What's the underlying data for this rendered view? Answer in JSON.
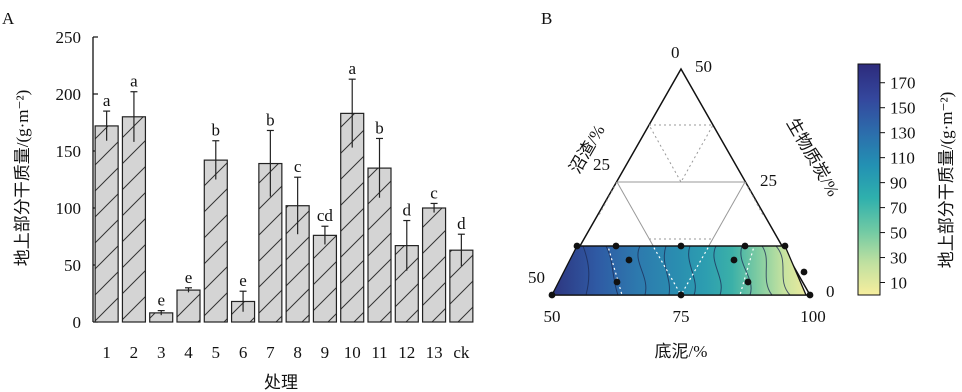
{
  "panel_a_label": "A",
  "panel_b_label": "B",
  "chart_data": [
    {
      "type": "bar",
      "ylabel": "地上部分干质量/(g·m⁻²)",
      "xlabel": "处理",
      "ylim": [
        0,
        250
      ],
      "yticks": [
        0,
        50,
        100,
        150,
        200,
        250
      ],
      "categories": [
        "1",
        "2",
        "3",
        "4",
        "5",
        "6",
        "7",
        "8",
        "9",
        "10",
        "11",
        "12",
        "13",
        "ck"
      ],
      "series": [
        {
          "values": [
            172,
            180,
            8,
            28,
            142,
            18,
            139,
            102,
            76,
            183,
            135,
            67,
            100,
            63
          ],
          "errors": [
            13,
            22,
            2,
            2,
            17,
            9,
            29,
            25,
            8,
            30,
            26,
            22,
            4,
            14
          ],
          "letters": [
            "a",
            "a",
            "e",
            "e",
            "b",
            "e",
            "b",
            "c",
            "cd",
            "a",
            "b",
            "d",
            "c",
            "d"
          ]
        }
      ],
      "bar_fill": "#d4d4d4",
      "hatch": "diagonal"
    },
    {
      "type": "heatmap",
      "subtype": "ternary",
      "axes": {
        "bottom": {
          "label": "底泥/%",
          "ticks": [
            "50",
            "75",
            "100"
          ]
        },
        "left": {
          "label": "沼渣/%",
          "ticks": [
            "0",
            "25",
            "50"
          ]
        },
        "right": {
          "label": "生物质炭/%",
          "ticks": [
            "50",
            "25",
            "0"
          ]
        }
      },
      "colorbar": {
        "label": "地上部分干质量/(g·m⁻²)",
        "ticks": [
          10,
          30,
          50,
          70,
          90,
          110,
          130,
          150,
          170
        ],
        "range": [
          0,
          185
        ],
        "colormap": [
          "#f7ee9e",
          "#bfe0a0",
          "#6fc9a4",
          "#2fb0ad",
          "#2391b3",
          "#2c6eac",
          "#34479d",
          "#2d2b7c"
        ]
      },
      "contour_values_left_to_right": [
        172,
        160,
        140,
        125,
        110,
        95,
        80,
        55,
        30
      ],
      "design_points": 14
    }
  ]
}
